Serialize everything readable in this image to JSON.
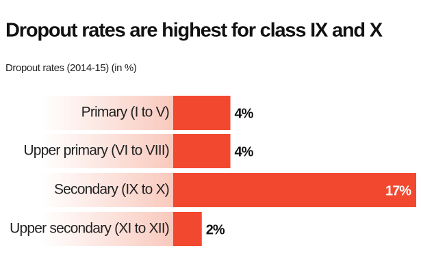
{
  "chart_data": {
    "type": "hbar",
    "title": "Dropout rates are highest for class IX and X",
    "subtitle": "Dropout rates (2014-15) (in %)",
    "categories": [
      "Primary (I to V)",
      "Upper primary (VI to VIII)",
      "Secondary (IX to X)",
      "Upper secondary (XI to XII)"
    ],
    "values": [
      4,
      4,
      17,
      2
    ],
    "value_labels": [
      "4%",
      "4%",
      "17%",
      "2%"
    ],
    "color": "#f2482f",
    "xlim": [
      0,
      17
    ]
  }
}
